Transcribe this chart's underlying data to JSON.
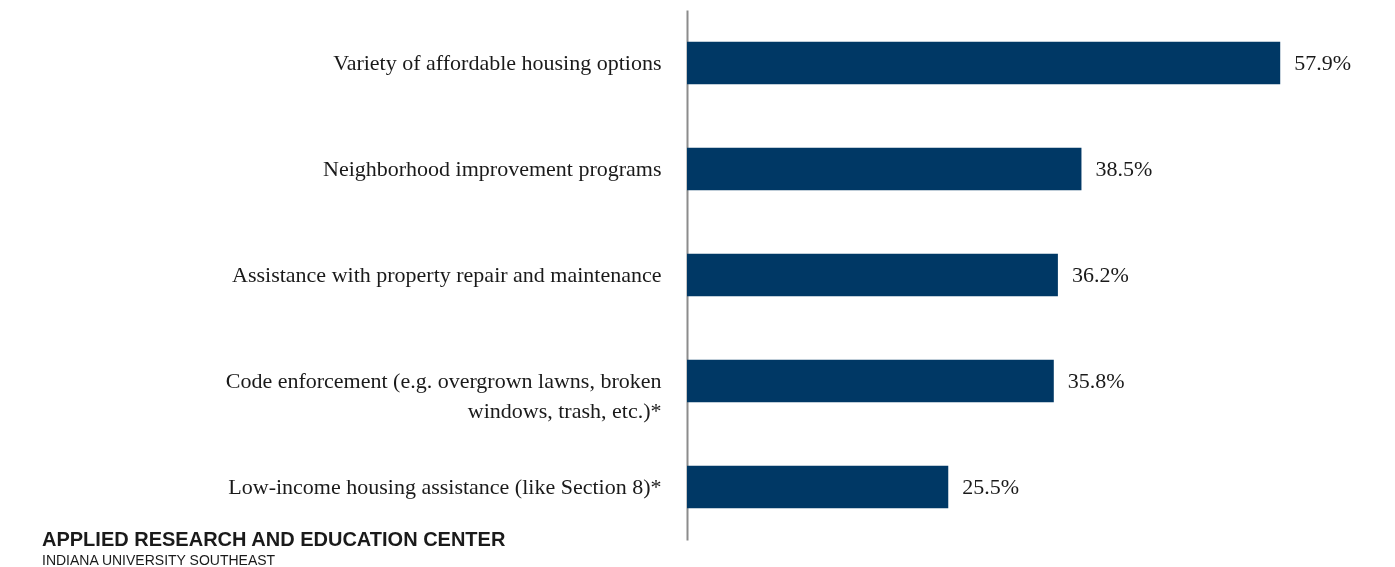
{
  "chart_data": {
    "type": "bar",
    "orientation": "horizontal",
    "categories": [
      "Variety of affordable housing options",
      "Neighborhood improvement programs",
      "Assistance with property repair and maintenance",
      "Code enforcement (e.g. overgrown lawns, broken\nwindows, trash, etc.)*",
      "Low-income housing assistance (like Section 8)*"
    ],
    "values": [
      57.9,
      38.5,
      36.2,
      35.8,
      25.5
    ],
    "value_labels": [
      "57.9%",
      "38.5%",
      "36.2%",
      "35.8%",
      "25.5%"
    ],
    "color": "#003865",
    "annotations": [
      "APPLIED RESEARCH AND EDUCATION CENTER",
      "INDIANA UNIVERSITY SOUTHEAST"
    ]
  }
}
